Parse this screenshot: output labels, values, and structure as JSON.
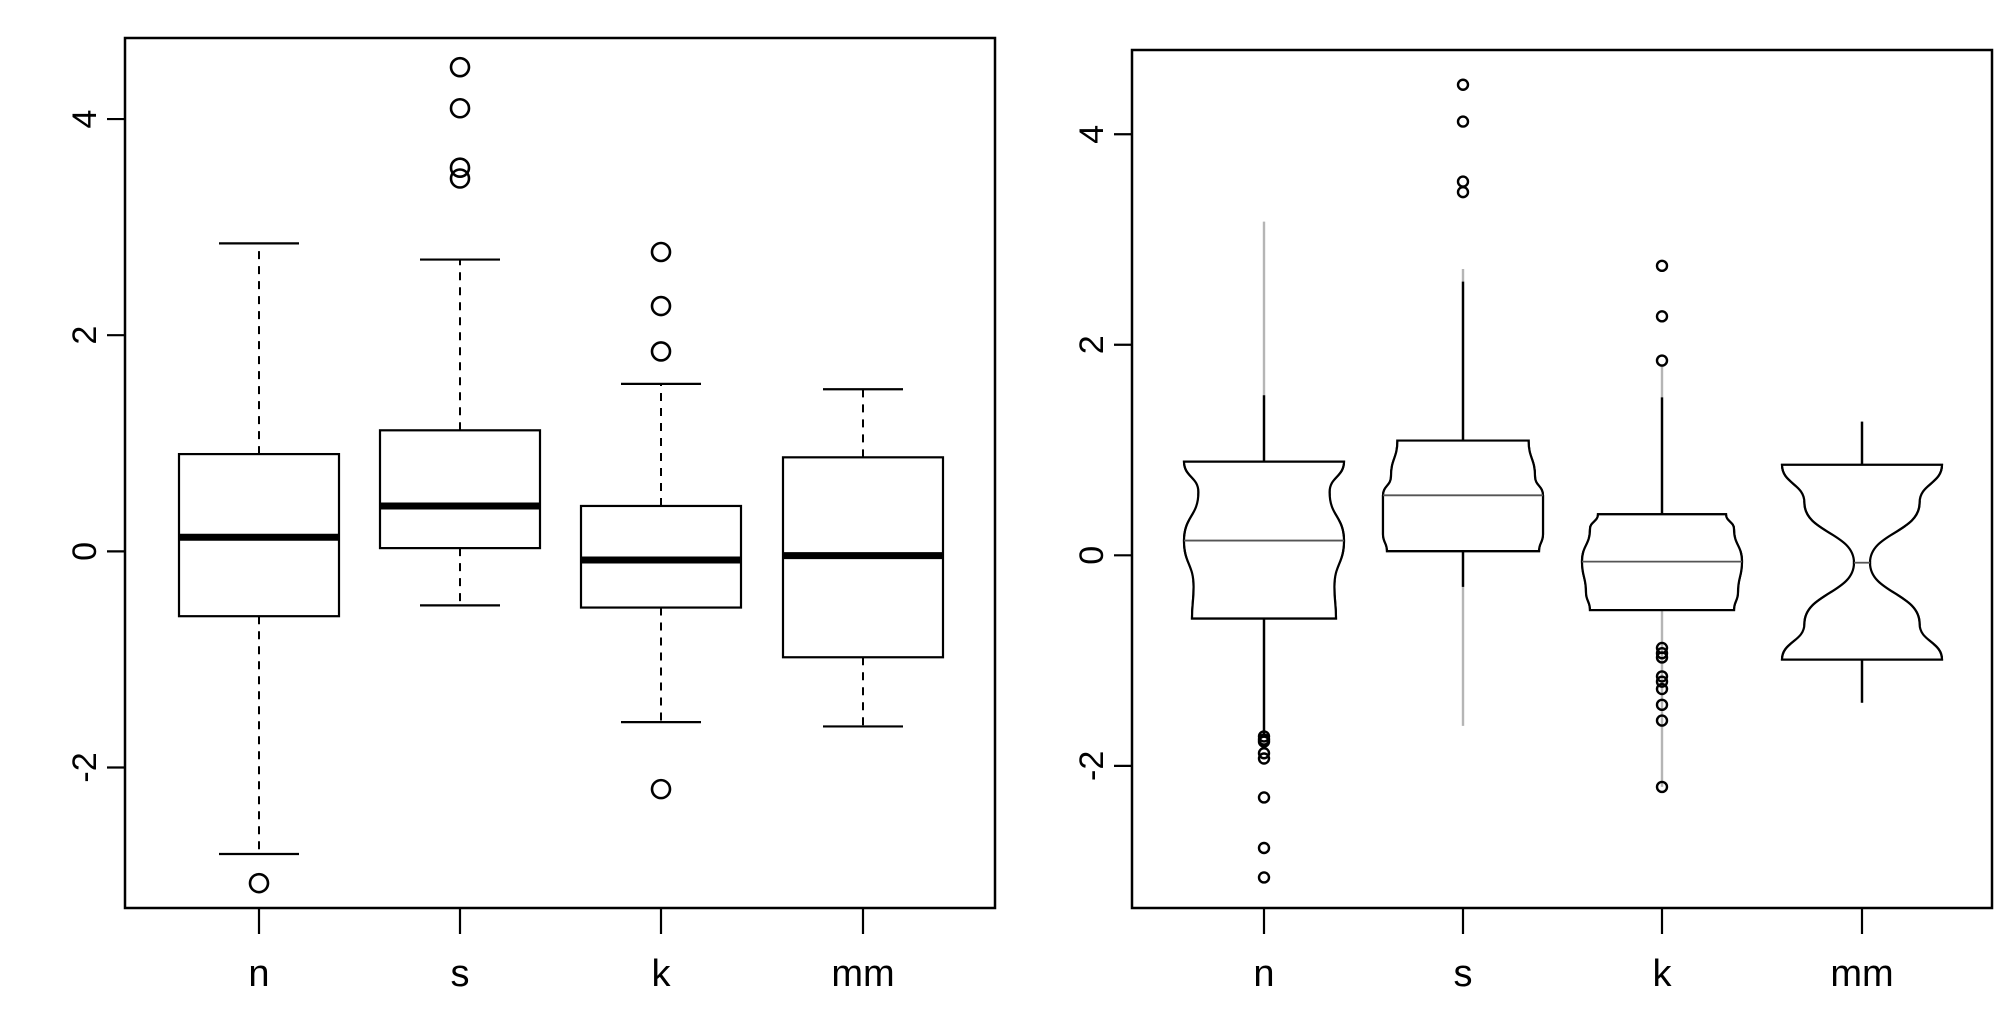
{
  "chart_data": [
    {
      "type": "box",
      "title": "",
      "xlabel": "",
      "ylabel": "",
      "categories": [
        "n",
        "s",
        "k",
        "mm"
      ],
      "yticks": [
        -2,
        0,
        2,
        4
      ],
      "ytick_labels": [
        "-2",
        "0",
        "2",
        "4"
      ],
      "ylim": [
        -3.3,
        4.75
      ],
      "boxes": [
        {
          "name": "n",
          "whisker_low": -2.8,
          "q1": -0.6,
          "median": 0.13,
          "q3": 0.9,
          "whisker_high": 2.85,
          "outliers": [
            -3.07
          ]
        },
        {
          "name": "s",
          "whisker_low": -0.5,
          "q1": 0.03,
          "median": 0.42,
          "q3": 1.12,
          "whisker_high": 2.7,
          "outliers": [
            3.45,
            3.55,
            4.1,
            4.48
          ]
        },
        {
          "name": "k",
          "whisker_low": -1.58,
          "q1": -0.52,
          "median": -0.08,
          "q3": 0.42,
          "whisker_high": 1.55,
          "outliers": [
            -2.2,
            1.85,
            2.27,
            2.77
          ]
        },
        {
          "name": "mm",
          "whisker_low": -1.62,
          "q1": -0.98,
          "median": -0.04,
          "q3": 0.87,
          "whisker_high": 1.5,
          "outliers": []
        }
      ]
    },
    {
      "type": "bean",
      "title": "",
      "xlabel": "",
      "ylabel": "",
      "categories": [
        "n",
        "s",
        "k",
        "mm"
      ],
      "yticks": [
        -2,
        0,
        2,
        4
      ],
      "ytick_labels": [
        "-2",
        "0",
        "2",
        "4"
      ],
      "ylim": [
        -3.35,
        4.8
      ],
      "beans": [
        {
          "name": "n",
          "outer_low": -1.7,
          "outer_high": 3.17,
          "inner_low": -1.7,
          "inner_high": 1.52,
          "q1": -0.6,
          "median": 0.14,
          "q3": 0.89,
          "width_profile": [
            [
              0.89,
              1.0
            ],
            [
              0.6,
              0.82
            ],
            [
              0.14,
              1.0
            ],
            [
              -0.3,
              0.88
            ],
            [
              -0.6,
              0.9
            ]
          ],
          "outliers": [
            -1.72,
            -1.75,
            -1.77,
            -1.88,
            -1.93,
            -2.3,
            -2.78,
            -3.06
          ]
        },
        {
          "name": "s",
          "outer_low": -1.62,
          "outer_high": 2.72,
          "inner_low": -0.3,
          "inner_high": 2.6,
          "q1": 0.04,
          "median": 0.57,
          "q3": 1.09,
          "width_profile": [
            [
              1.09,
              0.82
            ],
            [
              0.75,
              0.9
            ],
            [
              0.57,
              1.0
            ],
            [
              0.2,
              1.0
            ],
            [
              0.04,
              0.95
            ]
          ],
          "outliers": [
            3.45,
            3.55,
            4.12,
            4.47
          ]
        },
        {
          "name": "k",
          "outer_low": -2.2,
          "outer_high": 1.8,
          "inner_low": -0.52,
          "inner_high": 1.5,
          "q1": -0.52,
          "median": -0.06,
          "q3": 0.39,
          "width_profile": [
            [
              0.39,
              0.8
            ],
            [
              0.25,
              0.9
            ],
            [
              -0.06,
              1.0
            ],
            [
              -0.35,
              0.95
            ],
            [
              -0.52,
              0.9
            ]
          ],
          "outliers": [
            -0.88,
            -0.93,
            -0.97,
            -1.15,
            -1.2,
            -1.27,
            -1.42,
            -1.57,
            -2.2,
            1.85,
            2.27,
            2.75
          ]
        },
        {
          "name": "mm",
          "outer_low": -1.4,
          "outer_high": 1.27,
          "inner_low": -1.4,
          "inner_high": 1.27,
          "q1": -0.99,
          "median": -0.07,
          "q3": 0.86,
          "width_profile": [
            [
              0.86,
              1.0
            ],
            [
              0.5,
              0.72
            ],
            [
              -0.07,
              0.1
            ],
            [
              -0.65,
              0.72
            ],
            [
              -0.99,
              1.0
            ]
          ],
          "outliers": []
        }
      ]
    }
  ]
}
